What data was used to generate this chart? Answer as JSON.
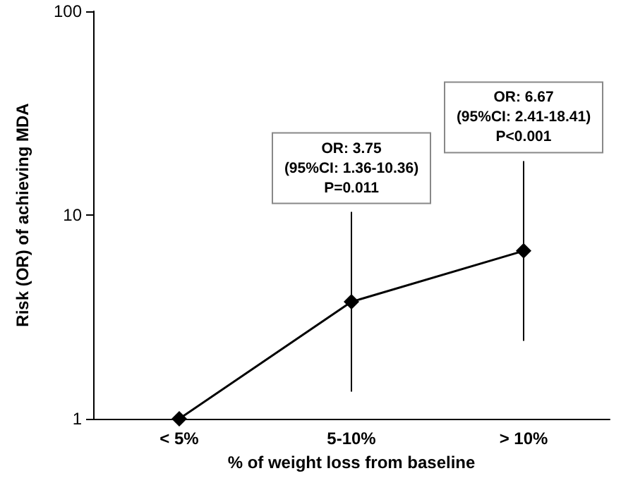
{
  "chart_data": {
    "type": "line",
    "xlabel": "% of weight loss from baseline",
    "ylabel": "Risk (OR) of achieving MDA",
    "categories": [
      "< 5%",
      "5-10%",
      "> 10%"
    ],
    "series": [
      {
        "color": "#000000",
        "values": [
          1,
          3.75,
          6.67
        ],
        "errors": [
          null,
          [
            1.36,
            10.36
          ],
          [
            2.41,
            18.41
          ]
        ]
      }
    ],
    "log": "y",
    "ylim": [
      1,
      100
    ],
    "yticks": [
      1,
      10,
      100
    ],
    "grid": false,
    "marker": "diamond",
    "line_style": "solid",
    "annotations": [
      {
        "text": "OR: 3.75\n(95%CI: 1.36-10.36)\nP=0.011",
        "x": "5-10%",
        "y": 10.36
      },
      {
        "text": "OR: 6.67\n(95%CI: 2.41-18.41)\nP<0.001",
        "x": "> 10%",
        "y": 18.41
      }
    ]
  }
}
